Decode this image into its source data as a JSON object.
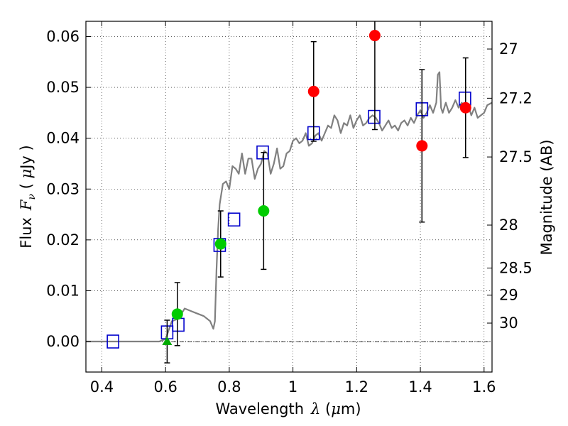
{
  "chart_data": {
    "type": "scatter",
    "xlabel": "Wavelength",
    "xlabel_symbol": "λ",
    "xlabel_unit_open": " (",
    "xlabel_unit_mu": "μ",
    "xlabel_unit_rest": "m)",
    "ylabel": "Flux",
    "ylabel_symbol": "F",
    "ylabel_symbol_sub": "ν",
    "ylabel_unit_open": " ( ",
    "ylabel_unit_mu": "μ",
    "ylabel_unit_rest": "Jy )",
    "y2label": "Magnitude (AB)",
    "xlim": [
      0.35,
      1.625
    ],
    "ylim": [
      -0.006,
      0.063
    ],
    "grid": true,
    "x_ticks": [
      {
        "value": 0.4,
        "label": "0.4"
      },
      {
        "value": 0.6,
        "label": "0.6"
      },
      {
        "value": 0.8,
        "label": "0.8"
      },
      {
        "value": 1.0,
        "label": "1"
      },
      {
        "value": 1.2,
        "label": "1.2"
      },
      {
        "value": 1.4,
        "label": "1.4"
      },
      {
        "value": 1.6,
        "label": "1.6"
      }
    ],
    "y_ticks": [
      {
        "value": 0.0,
        "label": "0.00"
      },
      {
        "value": 0.01,
        "label": "0.01"
      },
      {
        "value": 0.02,
        "label": "0.02"
      },
      {
        "value": 0.03,
        "label": "0.03"
      },
      {
        "value": 0.04,
        "label": "0.04"
      },
      {
        "value": 0.05,
        "label": "0.05"
      },
      {
        "value": 0.06,
        "label": "0.06"
      }
    ],
    "mag_ticks": [
      {
        "value": 27,
        "label": "27"
      },
      {
        "value": 27.2,
        "label": "27.2"
      },
      {
        "value": 27.5,
        "label": "27.5"
      },
      {
        "value": 28,
        "label": "28"
      },
      {
        "value": 28.5,
        "label": "28.5"
      },
      {
        "value": 29,
        "label": "29"
      },
      {
        "value": 30,
        "label": "30"
      }
    ],
    "series": [
      {
        "kind": "line",
        "color": "#808080",
        "points": [
          [
            0.35,
            0.0
          ],
          [
            0.58,
            0.0
          ],
          [
            0.6,
            0.0005
          ],
          [
            0.62,
            0.004
          ],
          [
            0.64,
            0.0045
          ],
          [
            0.66,
            0.0065
          ],
          [
            0.68,
            0.006
          ],
          [
            0.7,
            0.0055
          ],
          [
            0.72,
            0.005
          ],
          [
            0.74,
            0.004
          ],
          [
            0.75,
            0.0025
          ],
          [
            0.755,
            0.004
          ],
          [
            0.76,
            0.014
          ],
          [
            0.765,
            0.022
          ],
          [
            0.77,
            0.027
          ],
          [
            0.78,
            0.031
          ],
          [
            0.79,
            0.0315
          ],
          [
            0.8,
            0.03
          ],
          [
            0.81,
            0.0345
          ],
          [
            0.82,
            0.034
          ],
          [
            0.83,
            0.033
          ],
          [
            0.84,
            0.037
          ],
          [
            0.85,
            0.033
          ],
          [
            0.86,
            0.036
          ],
          [
            0.87,
            0.036
          ],
          [
            0.88,
            0.032
          ],
          [
            0.89,
            0.034
          ],
          [
            0.9,
            0.035
          ],
          [
            0.91,
            0.0375
          ],
          [
            0.92,
            0.037
          ],
          [
            0.93,
            0.033
          ],
          [
            0.94,
            0.035
          ],
          [
            0.95,
            0.038
          ],
          [
            0.96,
            0.034
          ],
          [
            0.97,
            0.0345
          ],
          [
            0.98,
            0.037
          ],
          [
            0.99,
            0.0375
          ],
          [
            1.0,
            0.0395
          ],
          [
            1.01,
            0.04
          ],
          [
            1.02,
            0.039
          ],
          [
            1.03,
            0.0395
          ],
          [
            1.04,
            0.041
          ],
          [
            1.05,
            0.0385
          ],
          [
            1.06,
            0.039
          ],
          [
            1.07,
            0.0405
          ],
          [
            1.08,
            0.041
          ],
          [
            1.09,
            0.0395
          ],
          [
            1.1,
            0.041
          ],
          [
            1.11,
            0.0425
          ],
          [
            1.12,
            0.042
          ],
          [
            1.13,
            0.0445
          ],
          [
            1.14,
            0.0435
          ],
          [
            1.15,
            0.041
          ],
          [
            1.16,
            0.043
          ],
          [
            1.17,
            0.0425
          ],
          [
            1.18,
            0.0445
          ],
          [
            1.19,
            0.042
          ],
          [
            1.2,
            0.0435
          ],
          [
            1.21,
            0.0445
          ],
          [
            1.22,
            0.0425
          ],
          [
            1.23,
            0.043
          ],
          [
            1.24,
            0.044
          ],
          [
            1.25,
            0.0445
          ],
          [
            1.26,
            0.044
          ],
          [
            1.27,
            0.043
          ],
          [
            1.28,
            0.0415
          ],
          [
            1.29,
            0.0425
          ],
          [
            1.3,
            0.0435
          ],
          [
            1.31,
            0.042
          ],
          [
            1.32,
            0.0425
          ],
          [
            1.33,
            0.0415
          ],
          [
            1.34,
            0.043
          ],
          [
            1.35,
            0.0435
          ],
          [
            1.36,
            0.0425
          ],
          [
            1.37,
            0.044
          ],
          [
            1.38,
            0.043
          ],
          [
            1.39,
            0.0445
          ],
          [
            1.4,
            0.0455
          ],
          [
            1.41,
            0.044
          ],
          [
            1.42,
            0.045
          ],
          [
            1.43,
            0.0465
          ],
          [
            1.44,
            0.045
          ],
          [
            1.45,
            0.047
          ],
          [
            1.455,
            0.0525
          ],
          [
            1.46,
            0.053
          ],
          [
            1.465,
            0.046
          ],
          [
            1.47,
            0.045
          ],
          [
            1.48,
            0.047
          ],
          [
            1.49,
            0.045
          ],
          [
            1.5,
            0.046
          ],
          [
            1.51,
            0.0475
          ],
          [
            1.52,
            0.046
          ],
          [
            1.53,
            0.047
          ],
          [
            1.54,
            0.0455
          ],
          [
            1.55,
            0.0465
          ],
          [
            1.56,
            0.0445
          ],
          [
            1.57,
            0.046
          ],
          [
            1.58,
            0.044
          ],
          [
            1.59,
            0.0445
          ],
          [
            1.6,
            0.045
          ],
          [
            1.61,
            0.0465
          ],
          [
            1.625,
            0.047
          ]
        ]
      },
      {
        "kind": "square",
        "color": "#0000cc",
        "points": [
          [
            0.435,
            0.0
          ],
          [
            0.605,
            0.0018
          ],
          [
            0.64,
            0.0033
          ],
          [
            0.77,
            0.019
          ],
          [
            0.815,
            0.024
          ],
          [
            0.905,
            0.0372
          ],
          [
            1.065,
            0.041
          ],
          [
            1.255,
            0.0442
          ],
          [
            1.405,
            0.0457
          ],
          [
            1.54,
            0.0478
          ]
        ]
      },
      {
        "kind": "circle",
        "color": "#00cc00",
        "points": [
          {
            "x": 0.637,
            "y": 0.0054,
            "err": 0.0062
          },
          {
            "x": 0.773,
            "y": 0.0192,
            "err": 0.0065
          },
          {
            "x": 0.908,
            "y": 0.0257,
            "err": 0.0115
          }
        ]
      },
      {
        "kind": "circle",
        "color": "#ff0000",
        "points": [
          {
            "x": 1.065,
            "y": 0.0492,
            "err": 0.0098
          },
          {
            "x": 1.257,
            "y": 0.0602,
            "err": 0.0185
          },
          {
            "x": 1.405,
            "y": 0.0385,
            "err": 0.015
          },
          {
            "x": 1.542,
            "y": 0.046,
            "err": 0.0098
          }
        ]
      },
      {
        "kind": "triangle",
        "color": "#00aa00",
        "points": [
          {
            "x": 0.605,
            "y": 0.0,
            "err": 0.0042
          }
        ]
      }
    ]
  }
}
